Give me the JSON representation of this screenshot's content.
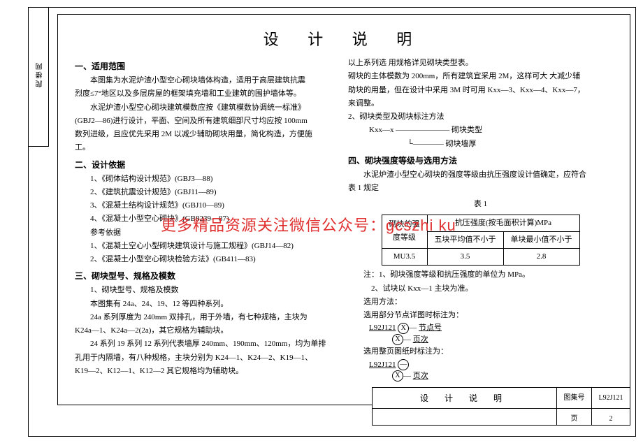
{
  "doc": {
    "title": "设 计 说 明",
    "watermark": "更多精品资源关注微信公众号：gcszhi ku",
    "sidebar_chars": "爬 楼 网"
  },
  "left": {
    "s1_head": "一、适用范围",
    "s1_p1": "本图集为水泥炉渣小型空心砌块墙体构造，适用于高层建筑抗震",
    "s1_p2": "烈度≤7°地区以及多层房屋的框架填充墙和工业建筑的围护墙体等。",
    "s1_p3": "水泥炉渣小型空心砌块建筑模数应按《建筑模数协调统一标准》",
    "s1_p4": "(GBJ2—86)进行设计，平面、空间及所有建筑细部尺寸均应按 100mm",
    "s1_p5": "数列进级，且应优先采用 2M 以减少辅助砌块用量，简化构造，方便施",
    "s1_p6": "工。",
    "s2_head": "二、设计依据",
    "s2_i1": "1、《砌体结构设计规范》(GBJ3—88)",
    "s2_i2": "2、《建筑抗震设计规范》(GBJ11—89)",
    "s2_i3": "3、《混凝土结构设计规范》(GBJ10—89)",
    "s2_i4": "4、《混凝土小型空心砌块》(GB8239—87)",
    "s2_ref": "参考依据",
    "s2_r1": "1、《混凝土空心小型砌块建筑设计与施工规程》(GBJ14—82)",
    "s2_r2": "2、《混凝土小型空心砌块检验方法》(GB411—83)",
    "s3_head": "三、砌块型号、规格及模数",
    "s3_i1": "1、砌块型号、规格及模数",
    "s3_p1": "本图集有 24a、24、19、12 等四种系列。",
    "s3_p2": "24a 系列厚度为 240mm 双排孔，用于外墙，有七种规格，主块为",
    "s3_p3": "K24a—1、K24a—2(2a)，其它规格为辅助块。",
    "s3_p4": "24 系列 19 系列 12 系列代表墙厚 240mm、190mm、120mm，均为单排",
    "s3_p5": "孔用于内隔墙，有八种规格，主块分别为 K24—1、K24—2、K19—1、",
    "s3_p6": "K19—2、K12—1、K12—2 其它规格均为辅助块。"
  },
  "right": {
    "r_p1": "以上系列选 用规格详见砌块类型表。",
    "r_p2": "砌块的主体模数为 200mm，所有建筑宜采用 2M，这样可大 大减少辅",
    "r_p3": "助块的用量，但在设计中采用 3M 时可用 Kxx—3、Kxx—4、Kxx—7，",
    "r_p4": "来调整。",
    "r_i2": "2、砌块类型及砌块标注方法",
    "r_nota1": "Kxx—x ——————— 砌块类型",
    "r_nota2": "　　　　　└———— 砌块墙厚",
    "s4_head": "四、砌块强度等级与选用方法",
    "s4_p1": "水泥炉渣小型空心砌块的强度等级由抗压强度设计值确定，应符合",
    "s4_p2": "表 1 规定",
    "table": {
      "caption": "表 1",
      "r1c1": "砌块的强",
      "r2c1": "度等级",
      "r1c2": "抗压强度(按毛面积计算)MPa",
      "r2c2": "五块平均值不小于",
      "r2c3": "单块最小值不小于",
      "r3c1": "MU3.5",
      "r3c2": "3.5",
      "r3c3": "2.8"
    },
    "note1": "注：1、砌块强度等级和抗压强度的单位为 MPa。",
    "note2": "2、试块以 Kxx—1 主块为准。",
    "sel_head": "选用方法：",
    "sel_p1": "选用部分节点详图时标注为：",
    "dia1_code": "L92J121",
    "dia1_top": "节点号",
    "dia1_bot": "页次",
    "sel_p2": "选用整页图纸时标注为：",
    "dia2_code": "L92J121",
    "dia2_top": "—",
    "dia2_bot": "页次"
  },
  "footer": {
    "title": "设 计 说 明",
    "set_lbl": "图集号",
    "set_val": "L92J121",
    "page_lbl": "页",
    "page_val": "2"
  }
}
